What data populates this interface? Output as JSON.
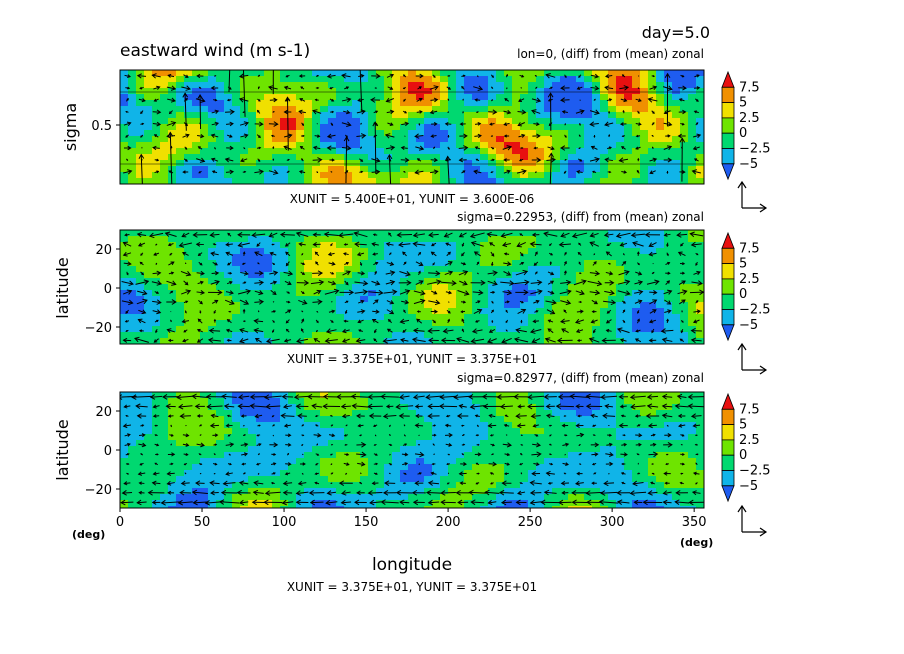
{
  "chart_data": [
    {
      "type": "heatmap",
      "title": "eastward wind (m s-1)",
      "time_label": "day=5.0",
      "subtitle": "lon=0, (diff) from (mean) zonal",
      "xlabel": "",
      "ylabel": "sigma",
      "yticks": [
        0.5
      ],
      "ylim": [
        1,
        0
      ],
      "unit_text": "XUNIT = 5.400E+01, YUNIT = 3.600E-06",
      "colorbar": {
        "levels": [
          -5,
          -2.5,
          0,
          2.5,
          5,
          7.5
        ],
        "labels": [
          "7.5",
          "5",
          "2.5",
          "0",
          "−2.5",
          "−5"
        ]
      }
    },
    {
      "type": "heatmap",
      "subtitle": "sigma=0.22953, (diff) from (mean) zonal",
      "xlabel": "",
      "ylabel": "latitude",
      "yticks": [
        20,
        0,
        -20
      ],
      "ytick_labels": [
        "20",
        "0",
        "−20"
      ],
      "ylim": [
        -30,
        30
      ],
      "unit_text": "XUNIT = 3.375E+01, YUNIT = 3.375E+01",
      "colorbar": {
        "levels": [
          -5,
          -2.5,
          0,
          2.5,
          5,
          7.5
        ],
        "labels": [
          "7.5",
          "5",
          "2.5",
          "0",
          "−2.5",
          "−5"
        ]
      }
    },
    {
      "type": "heatmap",
      "subtitle": "sigma=0.82977, (diff) from (mean) zonal",
      "xlabel": "longitude",
      "ylabel": "latitude",
      "yticks": [
        20,
        0,
        -20
      ],
      "ytick_labels": [
        "20",
        "0",
        "−20"
      ],
      "ylim": [
        -30,
        30
      ],
      "xticks": [
        0,
        50,
        100,
        150,
        200,
        250,
        300,
        350
      ],
      "xlim": [
        0,
        356
      ],
      "x_unit_left": "(deg)",
      "x_unit_right": "(deg)",
      "unit_text": "XUNIT = 3.375E+01, YUNIT = 3.375E+01",
      "colorbar": {
        "levels": [
          -5,
          -2.5,
          0,
          2.5,
          5,
          7.5
        ],
        "labels": [
          "7.5",
          "5",
          "2.5",
          "0",
          "−2.5",
          "−5"
        ]
      }
    }
  ],
  "palette": [
    "#1e5cf0",
    "#10b4e8",
    "#00d870",
    "#6ee400",
    "#f0e000",
    "#f09000",
    "#e81010"
  ],
  "vector_color": "#000000"
}
